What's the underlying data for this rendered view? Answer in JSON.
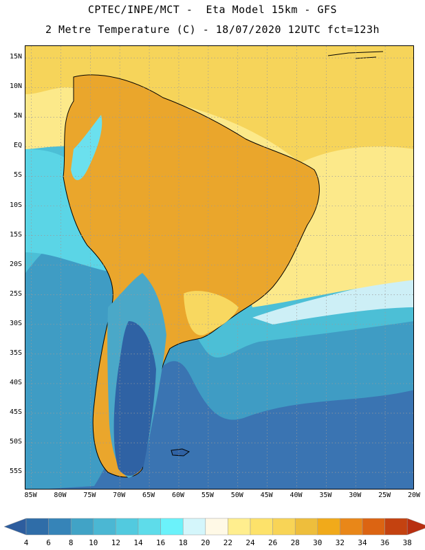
{
  "header": {
    "line1": "CPTEC/INPE/MCT -  Eta Model 15km - GFS",
    "line2": "2 Metre Temperature (C) - 18/07/2020 12UTC fct=123h"
  },
  "map": {
    "latitude_labels": [
      "15N",
      "10N",
      "5N",
      "EQ",
      "5S",
      "10S",
      "15S",
      "20S",
      "25S",
      "30S",
      "35S",
      "40S",
      "45S",
      "50S",
      "55S"
    ],
    "latitude_values": [
      15,
      10,
      5,
      0,
      -5,
      -10,
      -15,
      -20,
      -25,
      -30,
      -35,
      -40,
      -45,
      -50,
      -55
    ],
    "longitude_labels": [
      "85W",
      "80W",
      "75W",
      "70W",
      "65W",
      "60W",
      "55W",
      "50W",
      "45W",
      "40W",
      "35W",
      "30W",
      "25W",
      "20W"
    ],
    "longitude_values": [
      -85,
      -80,
      -75,
      -70,
      -65,
      -60,
      -55,
      -50,
      -45,
      -40,
      -35,
      -30,
      -25,
      -20
    ],
    "lon_range": [
      -86,
      -20
    ],
    "lat_range": [
      -58,
      17
    ]
  },
  "legend": {
    "unit": "C",
    "ticks": [
      "4",
      "6",
      "8",
      "10",
      "12",
      "14",
      "16",
      "18",
      "20",
      "22",
      "24",
      "26",
      "28",
      "30",
      "32",
      "34",
      "36",
      "38"
    ],
    "colors": [
      "#2d5d9e",
      "#2f6da8",
      "#3684b8",
      "#41a3c6",
      "#4bb7d3",
      "#52cadf",
      "#5edcea",
      "#6bf2fa",
      "#d4f6fb",
      "#fff9e6",
      "#ffee8e",
      "#fde26a",
      "#f8d456",
      "#eebe3c",
      "#f1aa1a",
      "#e98718",
      "#dc6412",
      "#c44210",
      "#b82f10"
    ]
  }
}
